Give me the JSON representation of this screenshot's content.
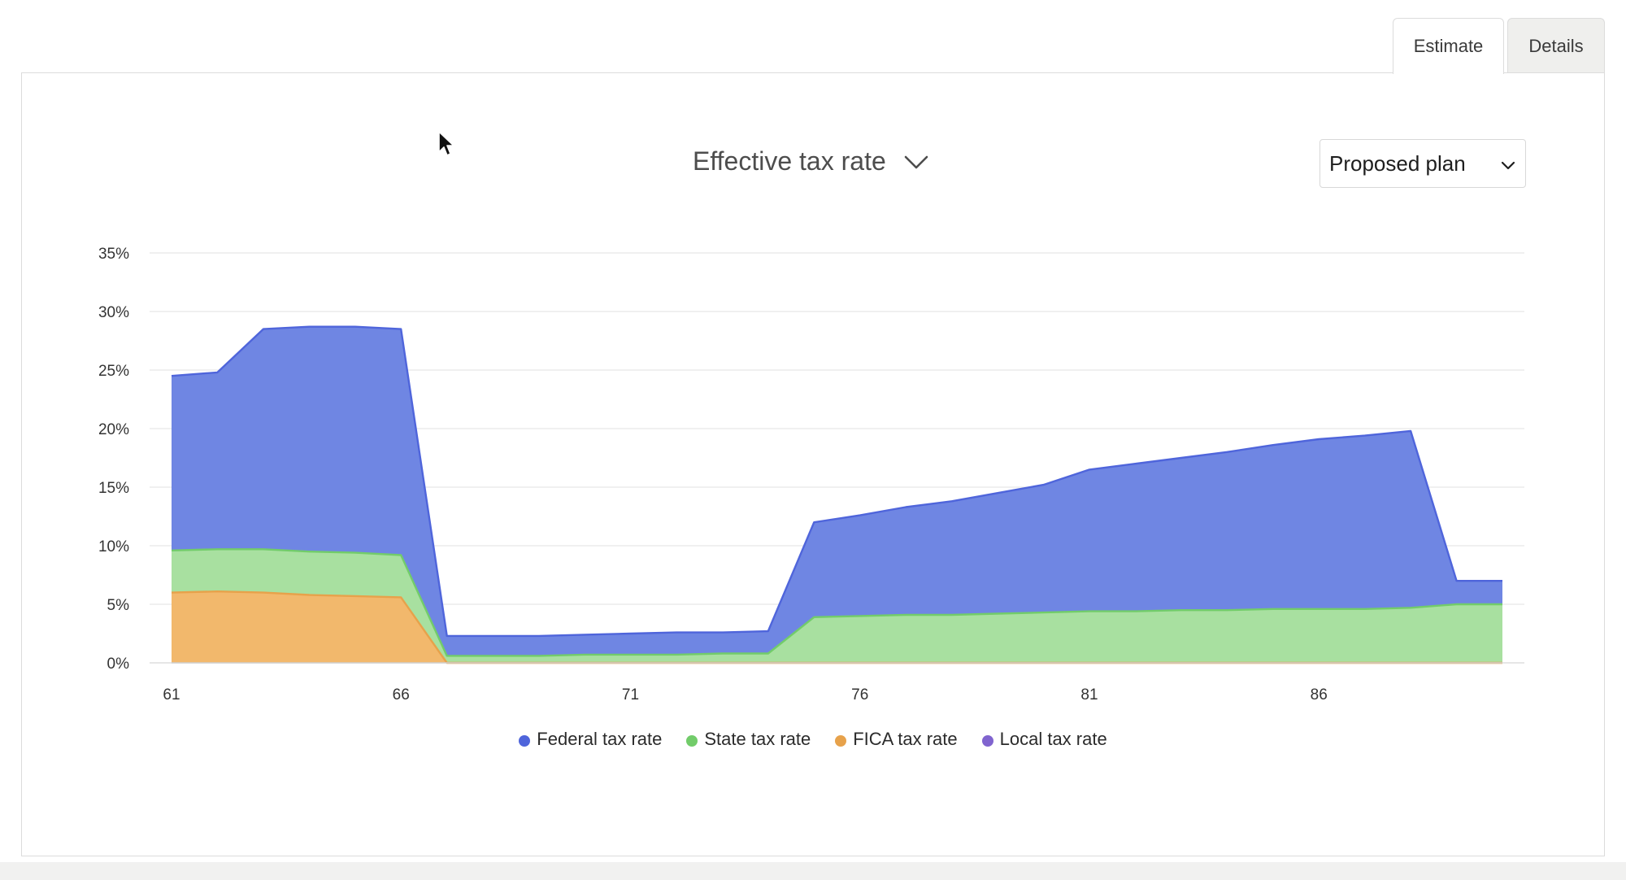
{
  "tabs": [
    {
      "label": "Estimate",
      "active": true
    },
    {
      "label": "Details",
      "active": false
    }
  ],
  "metric_selector": {
    "label": "Effective tax rate",
    "icon": "chevron-down-icon"
  },
  "plan_select": {
    "value": "Proposed plan",
    "icon": "chevron-down-icon"
  },
  "colors": {
    "federal": "#6f86e3",
    "federal_line": "#4f65db",
    "state": "#a8e0a0",
    "state_line": "#72cc6a",
    "fica": "#f2b86c",
    "fica_line": "#e7a24b",
    "local": "#8064cf",
    "grid": "#e8e8e8",
    "axis_text": "#333333"
  },
  "chart_data": {
    "type": "area",
    "stacked": true,
    "x": [
      61,
      62,
      63,
      64,
      65,
      66,
      67,
      68,
      69,
      70,
      71,
      72,
      73,
      74,
      75,
      76,
      77,
      78,
      79,
      80,
      81,
      82,
      83,
      84,
      85,
      86,
      87,
      88,
      89,
      90
    ],
    "xticks": [
      61,
      66,
      71,
      76,
      81,
      86
    ],
    "yticks": [
      "0%",
      "5%",
      "10%",
      "15%",
      "20%",
      "25%",
      "30%",
      "35%"
    ],
    "ylim": [
      0,
      35
    ],
    "grid": true,
    "legend_position": "bottom",
    "series": [
      {
        "name": "Federal tax rate",
        "key": "federal",
        "values": [
          14.9,
          15.1,
          18.8,
          19.2,
          19.3,
          19.3,
          1.7,
          1.7,
          1.7,
          1.7,
          1.8,
          1.9,
          1.8,
          1.9,
          8.1,
          8.6,
          9.2,
          9.7,
          10.3,
          10.9,
          12.1,
          12.6,
          13.0,
          13.5,
          14.0,
          14.5,
          14.8,
          15.1,
          2.0,
          2.0
        ]
      },
      {
        "name": "State tax rate",
        "key": "state",
        "values": [
          3.6,
          3.6,
          3.7,
          3.7,
          3.7,
          3.6,
          0.6,
          0.6,
          0.6,
          0.7,
          0.7,
          0.7,
          0.8,
          0.8,
          3.9,
          4.0,
          4.1,
          4.1,
          4.2,
          4.3,
          4.4,
          4.4,
          4.5,
          4.5,
          4.6,
          4.6,
          4.6,
          4.7,
          5.0,
          5.0
        ]
      },
      {
        "name": "FICA tax rate",
        "key": "fica",
        "values": [
          6.0,
          6.1,
          6.0,
          5.8,
          5.7,
          5.6,
          0,
          0,
          0,
          0,
          0,
          0,
          0,
          0,
          0,
          0,
          0,
          0,
          0,
          0,
          0,
          0,
          0,
          0,
          0,
          0,
          0,
          0,
          0,
          0
        ]
      },
      {
        "name": "Local tax rate",
        "key": "local",
        "values": [
          0,
          0,
          0,
          0,
          0,
          0,
          0,
          0,
          0,
          0,
          0,
          0,
          0,
          0,
          0,
          0,
          0,
          0,
          0,
          0,
          0,
          0,
          0,
          0,
          0,
          0,
          0,
          0,
          0,
          0
        ]
      }
    ]
  }
}
